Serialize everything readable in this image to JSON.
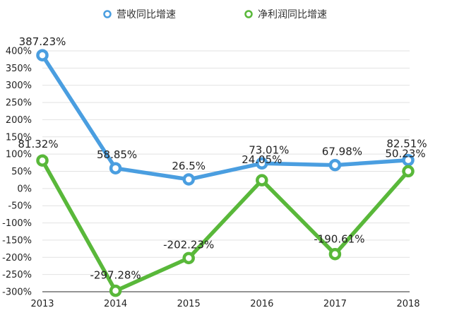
{
  "chart_data": {
    "type": "line",
    "categories": [
      "2013",
      "2014",
      "2015",
      "2016",
      "2017",
      "2018"
    ],
    "ylim": [
      -300,
      400
    ],
    "y_ticks": [
      "400%",
      "350%",
      "300%",
      "250%",
      "200%",
      "150%",
      "100%",
      "50%",
      "0%",
      "-50%",
      "-100%",
      "-150%",
      "-200%",
      "-250%",
      "-300%"
    ],
    "grid": "horizontal",
    "legend_position": "top-center",
    "series": [
      {
        "name": "营收同比增速",
        "color": "#4a9ee0",
        "values": [
          387.23,
          58.85,
          26.5,
          73.01,
          67.98,
          82.51
        ],
        "labels": [
          "387.23%",
          "58.85%",
          "26.5%",
          "73.01%",
          "67.98%",
          "82.51%"
        ]
      },
      {
        "name": "净利润同比增速",
        "color": "#59b83a",
        "values": [
          81.32,
          -297.28,
          -202.23,
          24.05,
          -190.61,
          50.23
        ],
        "labels": [
          "81.32%",
          "-297.28%",
          "-202.23%",
          "24.05%",
          "-190.61%",
          "50.23%"
        ]
      }
    ]
  }
}
